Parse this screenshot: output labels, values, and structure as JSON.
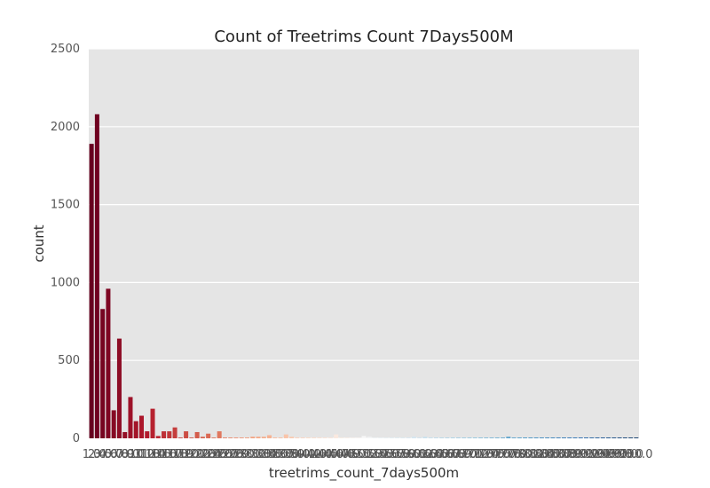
{
  "chart_data": {
    "type": "bar",
    "title": "Count of Treetrims Count 7Days500M",
    "xlabel": "treetrims_count_7days500m",
    "ylabel": "count",
    "ylim": [
      0,
      2500
    ],
    "yticks": [
      0,
      500,
      1000,
      1500,
      2000,
      2500
    ],
    "grid": true,
    "legend": "none",
    "colormap": "diverging red-to-blue",
    "colors": {
      "background": "#e5e5e5",
      "grid": "#ffffff",
      "dark_red": "#67001f",
      "dark_blue": "#053061"
    },
    "categories": [
      "1.0",
      "2.0",
      "3.0",
      "4.0",
      "5.0",
      "6.0",
      "7.0",
      "8.0",
      "9.0",
      "10.0",
      "11.0",
      "12.0",
      "13.0",
      "14.0",
      "15.0",
      "16.0",
      "17.0",
      "18.0",
      "19.0",
      "20.0",
      "21.0",
      "22.0",
      "23.0",
      "24.0",
      "25.0",
      "26.0",
      "27.0",
      "28.0",
      "29.0",
      "30.0",
      "31.0",
      "32.0",
      "33.0",
      "34.0",
      "35.0",
      "36.0",
      "37.0",
      "38.0",
      "39.0",
      "40.0",
      "41.0",
      "42.0",
      "43.0",
      "44.0",
      "45.0",
      "46.0",
      "47.0",
      "48.0",
      "49.0",
      "50.0",
      "51.0",
      "52.0",
      "53.0",
      "54.0",
      "55.0",
      "56.0",
      "57.0",
      "58.0",
      "59.0",
      "60.0",
      "61.0",
      "62.0",
      "63.0",
      "64.0",
      "65.0",
      "66.0",
      "67.0",
      "68.0",
      "69.0",
      "70.0",
      "71.0",
      "72.0",
      "73.0",
      "74.0",
      "75.0",
      "76.0",
      "77.0",
      "78.0",
      "79.0",
      "80.0",
      "81.0",
      "82.0",
      "83.0",
      "84.0",
      "85.0",
      "86.0",
      "87.0",
      "88.0",
      "89.0",
      "90.0",
      "91.0",
      "92.0",
      "93.0",
      "94.0",
      "95.0",
      "96.0",
      "97.0",
      "98.0",
      "100.0"
    ],
    "values": [
      1890,
      2080,
      830,
      960,
      180,
      640,
      40,
      265,
      110,
      145,
      45,
      190,
      15,
      45,
      45,
      70,
      5,
      45,
      5,
      40,
      10,
      30,
      5,
      45,
      5,
      5,
      5,
      5,
      5,
      10,
      10,
      10,
      20,
      5,
      5,
      25,
      10,
      5,
      5,
      5,
      5,
      5,
      5,
      5,
      25,
      5,
      5,
      5,
      5,
      15,
      10,
      5,
      5,
      5,
      5,
      5,
      5,
      5,
      10,
      5,
      10,
      5,
      5,
      5,
      5,
      5,
      5,
      5,
      5,
      5,
      5,
      5,
      5,
      5,
      5,
      10,
      5,
      5,
      5,
      5,
      5,
      5,
      5,
      5,
      5,
      5,
      5,
      5,
      5,
      5,
      5,
      5,
      5,
      5,
      5,
      5,
      5,
      5,
      5
    ]
  }
}
